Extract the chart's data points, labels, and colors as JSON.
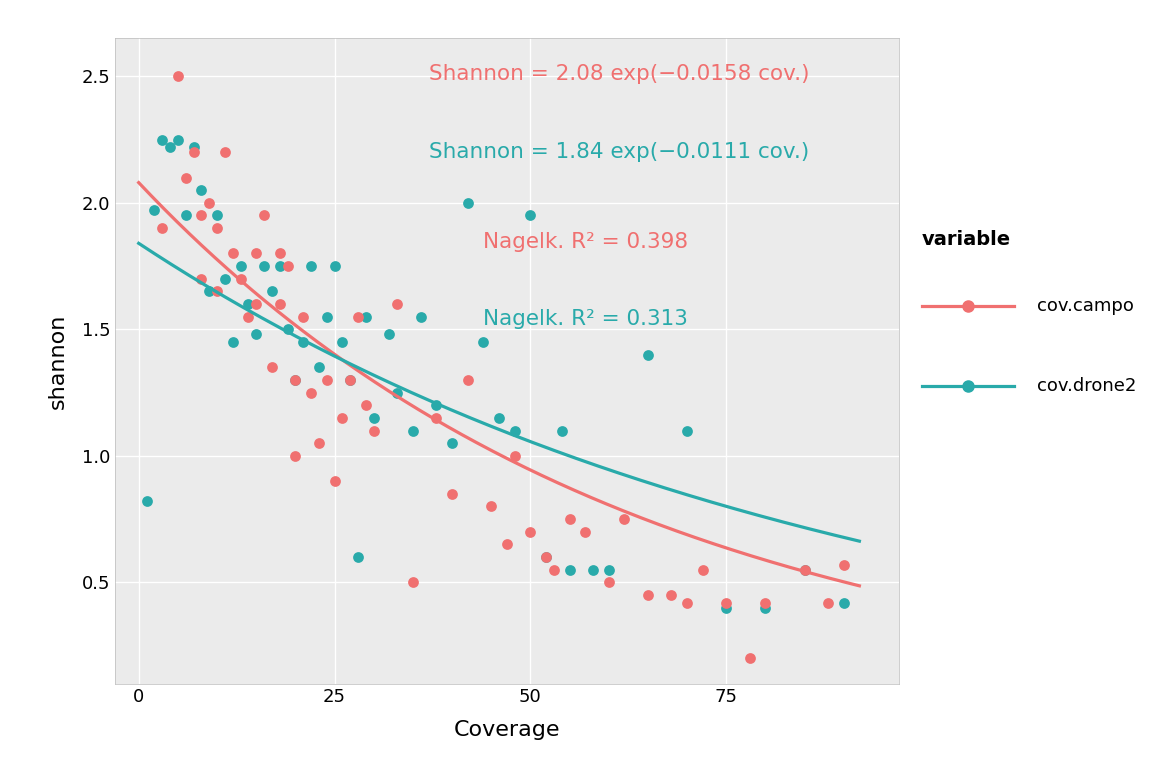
{
  "campo_x": [
    3,
    5,
    6,
    7,
    8,
    8,
    9,
    10,
    10,
    11,
    12,
    13,
    14,
    15,
    15,
    16,
    17,
    18,
    18,
    19,
    20,
    20,
    21,
    22,
    23,
    24,
    25,
    26,
    27,
    28,
    29,
    30,
    33,
    35,
    38,
    40,
    42,
    45,
    47,
    48,
    50,
    52,
    53,
    55,
    57,
    60,
    62,
    65,
    68,
    70,
    72,
    75,
    78,
    80,
    85,
    88,
    90
  ],
  "campo_y": [
    1.9,
    2.5,
    2.1,
    2.2,
    1.95,
    1.7,
    2.0,
    1.9,
    1.65,
    2.2,
    1.8,
    1.7,
    1.55,
    1.8,
    1.6,
    1.95,
    1.35,
    1.6,
    1.8,
    1.75,
    1.3,
    1.0,
    1.55,
    1.25,
    1.05,
    1.3,
    0.9,
    1.15,
    1.3,
    1.55,
    1.2,
    1.1,
    1.6,
    0.5,
    1.15,
    0.85,
    1.3,
    0.8,
    0.65,
    1.0,
    0.7,
    0.6,
    0.55,
    0.75,
    0.7,
    0.5,
    0.75,
    0.45,
    0.45,
    0.42,
    0.55,
    0.42,
    0.2,
    0.42,
    0.55,
    0.42,
    0.57
  ],
  "drone_x": [
    1,
    2,
    3,
    4,
    5,
    6,
    7,
    8,
    9,
    10,
    11,
    12,
    13,
    14,
    15,
    16,
    17,
    18,
    19,
    20,
    21,
    22,
    23,
    24,
    25,
    26,
    27,
    28,
    29,
    30,
    32,
    33,
    35,
    36,
    38,
    40,
    42,
    44,
    46,
    48,
    50,
    52,
    54,
    55,
    58,
    60,
    65,
    70,
    75,
    80,
    85,
    90
  ],
  "drone_y": [
    0.82,
    1.97,
    2.25,
    2.22,
    2.25,
    1.95,
    2.22,
    2.05,
    1.65,
    1.95,
    1.7,
    1.45,
    1.75,
    1.6,
    1.48,
    1.75,
    1.65,
    1.75,
    1.5,
    1.3,
    1.45,
    1.75,
    1.35,
    1.55,
    1.75,
    1.45,
    1.3,
    0.6,
    1.55,
    1.15,
    1.48,
    1.25,
    1.1,
    1.55,
    1.2,
    1.05,
    2.0,
    1.45,
    1.15,
    1.1,
    1.95,
    0.6,
    1.1,
    0.55,
    0.55,
    0.55,
    1.4,
    1.1,
    0.4,
    0.4,
    0.55,
    0.42
  ],
  "campo_color": "#F07070",
  "drone_color": "#29AAAA",
  "campo_eq": "Shannon = 2.08 exp(−0.0158 cov.)",
  "drone_eq": "Shannon = 1.84 exp(−0.0111 cov.)",
  "campo_r2": "Nagelk. R² = 0.398",
  "drone_r2": "Nagelk. R² = 0.313",
  "campo_a": 2.08,
  "campo_b": -0.0158,
  "drone_a": 1.84,
  "drone_b": -0.0111,
  "xlabel": "Coverage",
  "ylabel": "shannon",
  "legend_title": "variable",
  "legend_campo": "cov.campo",
  "legend_drone": "cov.drone2",
  "xlim": [
    -3,
    97
  ],
  "ylim": [
    0.1,
    2.65
  ],
  "xticks": [
    0,
    25,
    50,
    75
  ],
  "yticks": [
    0.5,
    1.0,
    1.5,
    2.0,
    2.5
  ],
  "panel_bg": "#EBEBEB",
  "grid_color": "#FFFFFF"
}
